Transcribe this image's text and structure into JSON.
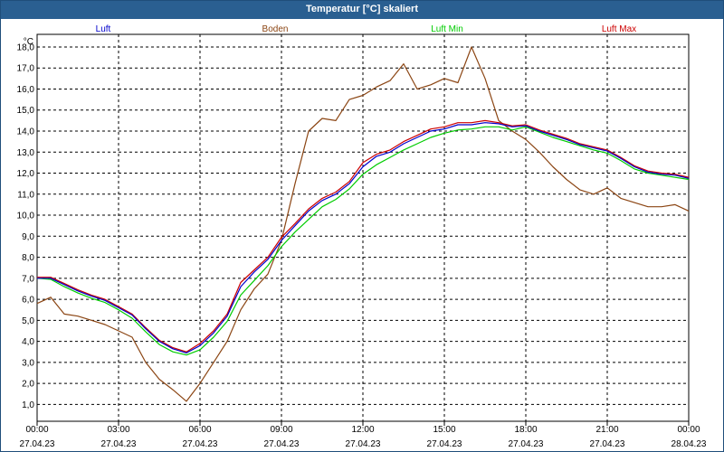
{
  "window": {
    "title": "Temperatur [°C] skaliert"
  },
  "chart_data": {
    "type": "line",
    "title": "Temperatur [°C] skaliert",
    "ylabel": "°C",
    "xlabel": "",
    "ylim": [
      0.2,
      18.6
    ],
    "xlim": [
      0,
      24
    ],
    "grid": true,
    "legend_position": "top",
    "y_ticks": [
      "1,0",
      "2,0",
      "3,0",
      "4,0",
      "5,0",
      "6,0",
      "7,0",
      "8,0",
      "9,0",
      "10,0",
      "11,0",
      "12,0",
      "13,0",
      "14,0",
      "15,0",
      "16,0",
      "17,0",
      "18,0"
    ],
    "x_ticks": [
      {
        "time": "00:00",
        "date": "27.04.23"
      },
      {
        "time": "03:00",
        "date": "27.04.23"
      },
      {
        "time": "06:00",
        "date": "27.04.23"
      },
      {
        "time": "09:00",
        "date": "27.04.23"
      },
      {
        "time": "12:00",
        "date": "27.04.23"
      },
      {
        "time": "15:00",
        "date": "27.04.23"
      },
      {
        "time": "18:00",
        "date": "27.04.23"
      },
      {
        "time": "21:00",
        "date": "27.04.23"
      },
      {
        "time": "00:00",
        "date": "28.04.23"
      }
    ],
    "series": [
      {
        "name": "Luft",
        "color": "#0000cc",
        "points": [
          [
            0,
            7.0
          ],
          [
            0.5,
            7.0
          ],
          [
            1,
            6.7
          ],
          [
            1.5,
            6.4
          ],
          [
            2,
            6.15
          ],
          [
            2.5,
            5.95
          ],
          [
            3,
            5.6
          ],
          [
            3.5,
            5.25
          ],
          [
            4,
            4.6
          ],
          [
            4.5,
            4.0
          ],
          [
            5,
            3.65
          ],
          [
            5.5,
            3.45
          ],
          [
            6,
            3.8
          ],
          [
            6.5,
            4.4
          ],
          [
            7,
            5.2
          ],
          [
            7.5,
            6.6
          ],
          [
            8,
            7.3
          ],
          [
            8.5,
            7.9
          ],
          [
            9,
            8.8
          ],
          [
            9.5,
            9.5
          ],
          [
            10,
            10.2
          ],
          [
            10.5,
            10.7
          ],
          [
            11,
            11.0
          ],
          [
            11.5,
            11.5
          ],
          [
            12,
            12.3
          ],
          [
            12.5,
            12.8
          ],
          [
            13,
            13.0
          ],
          [
            13.5,
            13.4
          ],
          [
            14,
            13.7
          ],
          [
            14.5,
            14.0
          ],
          [
            15,
            14.1
          ],
          [
            15.5,
            14.3
          ],
          [
            16,
            14.3
          ],
          [
            16.5,
            14.4
          ],
          [
            17,
            14.35
          ],
          [
            17.5,
            14.2
          ],
          [
            18,
            14.25
          ],
          [
            18.5,
            14.0
          ],
          [
            19,
            13.8
          ],
          [
            19.5,
            13.6
          ],
          [
            20,
            13.35
          ],
          [
            20.5,
            13.2
          ],
          [
            21,
            13.05
          ],
          [
            21.5,
            12.7
          ],
          [
            22,
            12.3
          ],
          [
            22.5,
            12.05
          ],
          [
            23,
            11.95
          ],
          [
            23.5,
            11.9
          ],
          [
            24,
            11.75
          ]
        ]
      },
      {
        "name": "Boden",
        "color": "#8b4513",
        "points": [
          [
            0,
            5.8
          ],
          [
            0.5,
            6.1
          ],
          [
            1,
            5.3
          ],
          [
            1.5,
            5.2
          ],
          [
            2,
            5.0
          ],
          [
            2.5,
            4.8
          ],
          [
            3,
            4.5
          ],
          [
            3.5,
            4.2
          ],
          [
            4,
            3.0
          ],
          [
            4.5,
            2.2
          ],
          [
            5,
            1.7
          ],
          [
            5.5,
            1.15
          ],
          [
            6,
            2.0
          ],
          [
            6.5,
            3.0
          ],
          [
            7,
            4.0
          ],
          [
            7.5,
            5.5
          ],
          [
            8,
            6.5
          ],
          [
            8.5,
            7.2
          ],
          [
            9,
            8.8
          ],
          [
            9.5,
            11.5
          ],
          [
            10,
            14.0
          ],
          [
            10.5,
            14.6
          ],
          [
            11,
            14.5
          ],
          [
            11.5,
            15.5
          ],
          [
            12,
            15.7
          ],
          [
            12.5,
            16.1
          ],
          [
            13,
            16.4
          ],
          [
            13.5,
            17.2
          ],
          [
            14,
            16.0
          ],
          [
            14.5,
            16.2
          ],
          [
            15,
            16.5
          ],
          [
            15.5,
            16.3
          ],
          [
            16,
            18.0
          ],
          [
            16.5,
            16.5
          ],
          [
            17,
            14.5
          ],
          [
            17.5,
            14.0
          ],
          [
            18,
            13.6
          ],
          [
            18.5,
            13.0
          ],
          [
            19,
            12.3
          ],
          [
            19.5,
            11.7
          ],
          [
            20,
            11.2
          ],
          [
            20.5,
            11.0
          ],
          [
            21,
            11.3
          ],
          [
            21.5,
            10.8
          ],
          [
            22,
            10.6
          ],
          [
            22.5,
            10.4
          ],
          [
            23,
            10.4
          ],
          [
            23.5,
            10.5
          ],
          [
            24,
            10.2
          ]
        ]
      },
      {
        "name": "Luft Min",
        "color": "#00cc00",
        "points": [
          [
            0,
            7.0
          ],
          [
            0.5,
            6.95
          ],
          [
            1,
            6.6
          ],
          [
            1.5,
            6.3
          ],
          [
            2,
            6.05
          ],
          [
            2.5,
            5.85
          ],
          [
            3,
            5.5
          ],
          [
            3.5,
            5.1
          ],
          [
            4,
            4.45
          ],
          [
            4.5,
            3.85
          ],
          [
            5,
            3.5
          ],
          [
            5.5,
            3.35
          ],
          [
            6,
            3.6
          ],
          [
            6.5,
            4.2
          ],
          [
            7,
            4.95
          ],
          [
            7.5,
            6.2
          ],
          [
            8,
            6.9
          ],
          [
            8.5,
            7.6
          ],
          [
            9,
            8.5
          ],
          [
            9.5,
            9.2
          ],
          [
            10,
            9.8
          ],
          [
            10.5,
            10.4
          ],
          [
            11,
            10.75
          ],
          [
            11.5,
            11.25
          ],
          [
            12,
            11.95
          ],
          [
            12.5,
            12.4
          ],
          [
            13,
            12.75
          ],
          [
            13.5,
            13.1
          ],
          [
            14,
            13.4
          ],
          [
            14.5,
            13.7
          ],
          [
            15,
            13.9
          ],
          [
            15.5,
            14.05
          ],
          [
            16,
            14.1
          ],
          [
            16.5,
            14.2
          ],
          [
            17,
            14.2
          ],
          [
            17.5,
            14.05
          ],
          [
            18,
            14.2
          ],
          [
            18.5,
            13.95
          ],
          [
            19,
            13.7
          ],
          [
            19.5,
            13.5
          ],
          [
            20,
            13.3
          ],
          [
            20.5,
            13.1
          ],
          [
            21,
            12.95
          ],
          [
            21.5,
            12.6
          ],
          [
            22,
            12.2
          ],
          [
            22.5,
            12.0
          ],
          [
            23,
            11.9
          ],
          [
            23.5,
            11.8
          ],
          [
            24,
            11.7
          ]
        ]
      },
      {
        "name": "Luft Max",
        "color": "#cc0000",
        "points": [
          [
            0,
            7.05
          ],
          [
            0.5,
            7.05
          ],
          [
            1,
            6.75
          ],
          [
            1.5,
            6.45
          ],
          [
            2,
            6.2
          ],
          [
            2.5,
            6.0
          ],
          [
            3,
            5.65
          ],
          [
            3.5,
            5.3
          ],
          [
            4,
            4.65
          ],
          [
            4.5,
            4.05
          ],
          [
            5,
            3.7
          ],
          [
            5.5,
            3.5
          ],
          [
            6,
            3.9
          ],
          [
            6.5,
            4.5
          ],
          [
            7,
            5.3
          ],
          [
            7.5,
            6.8
          ],
          [
            8,
            7.4
          ],
          [
            8.5,
            8.0
          ],
          [
            9,
            8.95
          ],
          [
            9.5,
            9.6
          ],
          [
            10,
            10.3
          ],
          [
            10.5,
            10.8
          ],
          [
            11,
            11.1
          ],
          [
            11.5,
            11.6
          ],
          [
            12,
            12.5
          ],
          [
            12.5,
            12.9
          ],
          [
            13,
            13.1
          ],
          [
            13.5,
            13.5
          ],
          [
            14,
            13.8
          ],
          [
            14.5,
            14.1
          ],
          [
            15,
            14.2
          ],
          [
            15.5,
            14.4
          ],
          [
            16,
            14.4
          ],
          [
            16.5,
            14.5
          ],
          [
            17,
            14.4
          ],
          [
            17.5,
            14.25
          ],
          [
            18,
            14.3
          ],
          [
            18.5,
            14.05
          ],
          [
            19,
            13.85
          ],
          [
            19.5,
            13.65
          ],
          [
            20,
            13.4
          ],
          [
            20.5,
            13.25
          ],
          [
            21,
            13.1
          ],
          [
            21.5,
            12.75
          ],
          [
            22,
            12.35
          ],
          [
            22.5,
            12.1
          ],
          [
            23,
            12.0
          ],
          [
            23.5,
            11.95
          ],
          [
            24,
            11.8
          ]
        ]
      }
    ]
  }
}
